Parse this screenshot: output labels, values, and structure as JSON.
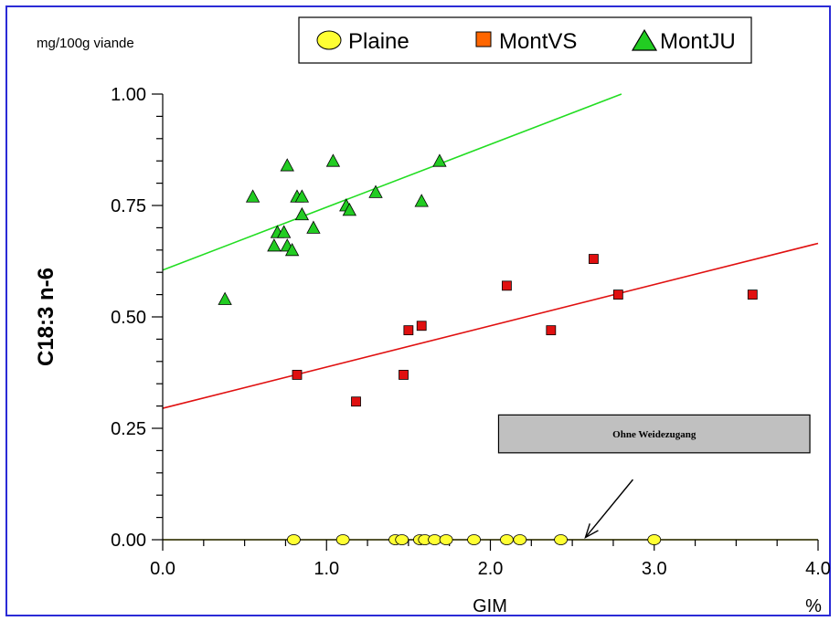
{
  "chart_data": {
    "type": "scatter",
    "unit_label": "mg/100g viande",
    "ylabel": "C18:3 n-6",
    "xlabel": "GIM",
    "x_unit": "%",
    "xlim": [
      0,
      4
    ],
    "ylim": [
      0,
      1
    ],
    "x_ticks": [
      "0.0",
      "1.0",
      "2.0",
      "3.0",
      "4.0"
    ],
    "y_ticks": [
      "0.00",
      "0.25",
      "0.50",
      "0.75",
      "1.00"
    ],
    "grid": false,
    "legend_position": "top",
    "series": [
      {
        "name": "Plaine",
        "marker": "circle",
        "color": "#ffff33",
        "points": [
          [
            0.8,
            0
          ],
          [
            1.1,
            0
          ],
          [
            1.42,
            0
          ],
          [
            1.46,
            0
          ],
          [
            1.57,
            0
          ],
          [
            1.6,
            0
          ],
          [
            1.66,
            0
          ],
          [
            1.73,
            0
          ],
          [
            1.9,
            0
          ],
          [
            2.1,
            0
          ],
          [
            2.18,
            0
          ],
          [
            2.43,
            0
          ],
          [
            3.0,
            0
          ]
        ],
        "fit": [
          [
            0,
            0
          ],
          [
            4,
            0
          ]
        ],
        "fit_color": "#cccc00"
      },
      {
        "name": "MontVS",
        "marker": "square",
        "color": "#e01010",
        "points": [
          [
            0.82,
            0.37
          ],
          [
            1.18,
            0.31
          ],
          [
            1.47,
            0.37
          ],
          [
            1.5,
            0.47
          ],
          [
            1.58,
            0.48
          ],
          [
            2.1,
            0.57
          ],
          [
            2.37,
            0.47
          ],
          [
            2.63,
            0.63
          ],
          [
            2.78,
            0.55
          ],
          [
            3.6,
            0.55
          ]
        ],
        "fit": [
          [
            0,
            0.295
          ],
          [
            4,
            0.665
          ]
        ],
        "fit_color": "#e01010"
      },
      {
        "name": "MontJU",
        "marker": "triangle",
        "color": "#22cc22",
        "points": [
          [
            0.38,
            0.54
          ],
          [
            0.55,
            0.77
          ],
          [
            0.68,
            0.66
          ],
          [
            0.7,
            0.69
          ],
          [
            0.74,
            0.69
          ],
          [
            0.76,
            0.84
          ],
          [
            0.76,
            0.66
          ],
          [
            0.79,
            0.65
          ],
          [
            0.82,
            0.77
          ],
          [
            0.85,
            0.77
          ],
          [
            0.85,
            0.73
          ],
          [
            0.92,
            0.7
          ],
          [
            1.04,
            0.85
          ],
          [
            1.12,
            0.75
          ],
          [
            1.14,
            0.74
          ],
          [
            1.3,
            0.78
          ],
          [
            1.58,
            0.76
          ],
          [
            1.69,
            0.85
          ]
        ],
        "fit": [
          [
            0,
            0.605
          ],
          [
            2.8,
            1.0
          ]
        ],
        "fit_color": "#22dd22"
      }
    ],
    "annotation": {
      "text": "Ohne Weidezugang",
      "box_x": [
        2.05,
        3.95
      ],
      "box_y": [
        0.195,
        0.28
      ],
      "arrow_from": [
        2.87,
        0.135
      ],
      "arrow_to": [
        2.58,
        0.005
      ]
    }
  }
}
